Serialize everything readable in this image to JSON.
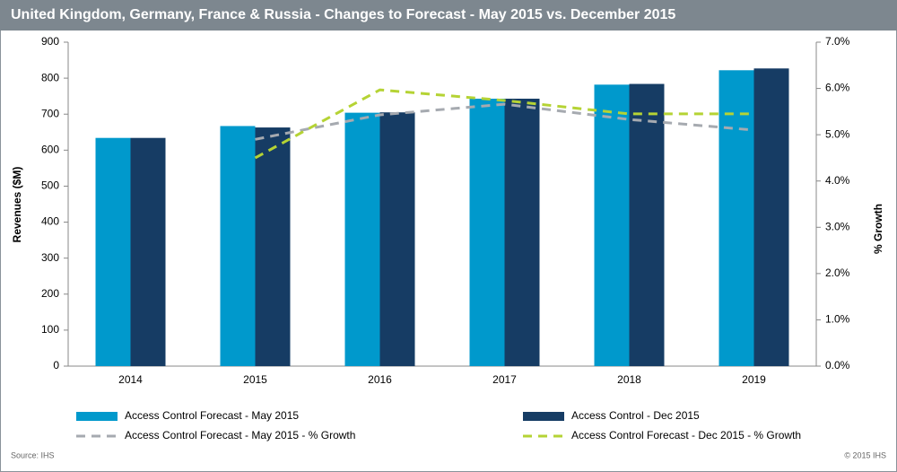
{
  "chart_data": {
    "type": "combo",
    "title": "United Kingdom, Germany, France & Russia - Changes to Forecast - May 2015 vs. December 2015",
    "y_label": "Revenues ($M)",
    "y2_label": "% Growth",
    "source": "Source: IHS",
    "copyright": "© 2015 IHS",
    "categories": [
      "2014",
      "2015",
      "2016",
      "2017",
      "2018",
      "2019"
    ],
    "ylim": [
      0,
      900
    ],
    "yticks": [
      0,
      100,
      200,
      300,
      400,
      500,
      600,
      700,
      800,
      900
    ],
    "y2lim": [
      0,
      7
    ],
    "y2ticks": [
      {
        "value": 0,
        "label": "0.0%"
      },
      {
        "value": 1,
        "label": "1.0%"
      },
      {
        "value": 2,
        "label": "2.0%"
      },
      {
        "value": 3,
        "label": "3.0%"
      },
      {
        "value": 4,
        "label": "4.0%"
      },
      {
        "value": 5,
        "label": "5.0%"
      },
      {
        "value": 6,
        "label": "6.0%"
      },
      {
        "value": 7,
        "label": "7.0%"
      }
    ],
    "series": [
      {
        "name": "Access Control Forecast - May 2015",
        "type": "bar",
        "color": "#0099cc",
        "values": [
          634,
          667,
          704,
          743,
          782,
          822
        ]
      },
      {
        "name": "Access Control - Dec 2015",
        "type": "bar",
        "color": "#163c64",
        "values": [
          634,
          663,
          705,
          743,
          784,
          827
        ]
      },
      {
        "name": "Access Control Forecast - May 2015 - % Growth",
        "type": "line",
        "axis": "y2",
        "dashed": true,
        "color": "#a6aab0",
        "values": [
          null,
          4.9,
          5.43,
          5.66,
          5.33,
          5.1
        ]
      },
      {
        "name": "Access Control Forecast - Dec 2015 - % Growth",
        "type": "line",
        "axis": "y2",
        "dashed": true,
        "color": "#b5d334",
        "values": [
          null,
          4.5,
          5.97,
          5.74,
          5.45,
          5.45
        ]
      }
    ]
  }
}
